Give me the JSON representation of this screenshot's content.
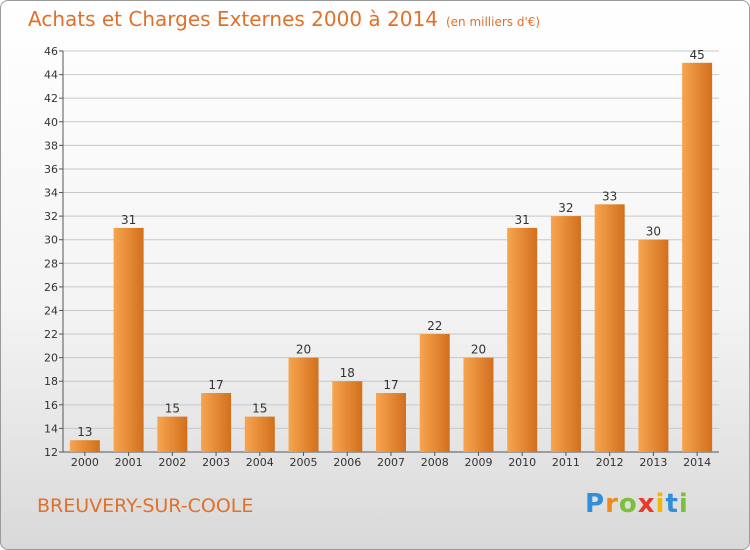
{
  "title": "Achats et Charges Externes 2000 à 2014",
  "subtitle": "(en milliers d'€)",
  "place": "BREUVERY-SUR-COOLE",
  "logo": {
    "text": "Proxiti",
    "letters": [
      {
        "ch": "P",
        "color": "#2f8fd8"
      },
      {
        "ch": "r",
        "color": "#f08a1c"
      },
      {
        "ch": "o",
        "color": "#7cbf3a"
      },
      {
        "ch": "x",
        "color": "#e83a2a"
      },
      {
        "ch": "i",
        "color": "#f4b400"
      },
      {
        "ch": "t",
        "color": "#2f8fd8"
      },
      {
        "ch": "i",
        "color": "#7cbf3a"
      }
    ]
  },
  "colors": {
    "bar_light": "#f7a550",
    "bar_dark": "#d26f1c",
    "title": "#e0702a",
    "grid": "#c8c8c8"
  },
  "chart_data": {
    "type": "bar",
    "categories": [
      "2000",
      "2001",
      "2002",
      "2003",
      "2004",
      "2005",
      "2006",
      "2007",
      "2008",
      "2009",
      "2010",
      "2011",
      "2012",
      "2013",
      "2014"
    ],
    "values": [
      13,
      31,
      15,
      17,
      15,
      20,
      18,
      17,
      22,
      20,
      31,
      32,
      33,
      30,
      45
    ],
    "title": "Achats et Charges Externes 2000 à 2014",
    "xlabel": "",
    "ylabel": "",
    "ylim": [
      12,
      46
    ],
    "yticks": [
      12,
      14,
      16,
      18,
      20,
      22,
      24,
      26,
      28,
      30,
      32,
      34,
      36,
      38,
      40,
      42,
      44,
      46
    ],
    "grid": true,
    "data_labels": true
  }
}
